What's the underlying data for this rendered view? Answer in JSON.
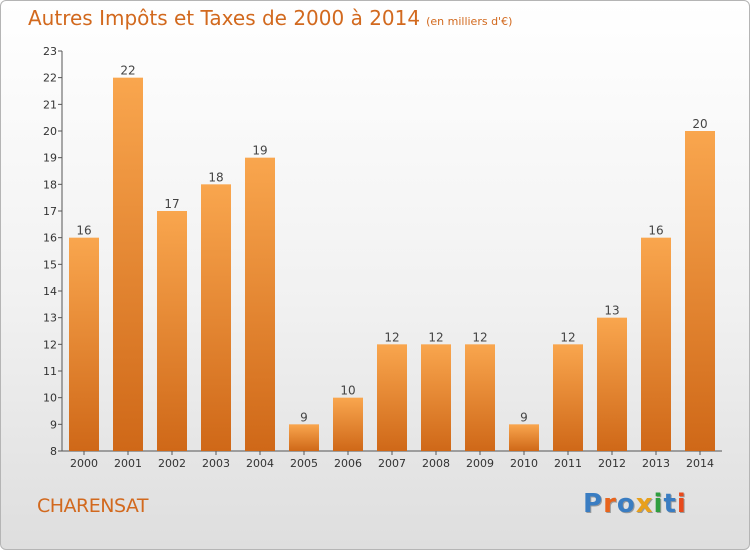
{
  "header": {
    "title": "Autres Impôts et Taxes de 2000 à 2014",
    "subtitle": "(en milliers d'€)"
  },
  "footer": {
    "city": "CHARENSAT"
  },
  "logo": {
    "text": "Proxiti",
    "letter_colors": [
      "#3a7dc2",
      "#e8641c",
      "#3a7dc2",
      "#e8a01c",
      "#2f9e3f",
      "#3a7dc2",
      "#e84a1c"
    ]
  },
  "colors": {
    "bar_light": "#f9a64e",
    "bar_dark": "#cf6818",
    "title": "#d2691e",
    "axis_text": "#333333"
  },
  "chart_data": {
    "type": "bar",
    "categories": [
      "2000",
      "2001",
      "2002",
      "2003",
      "2004",
      "2005",
      "2006",
      "2007",
      "2008",
      "2009",
      "2010",
      "2011",
      "2012",
      "2013",
      "2014"
    ],
    "values": [
      16,
      22,
      17,
      18,
      19,
      9,
      10,
      12,
      12,
      12,
      9,
      12,
      13,
      16,
      20
    ],
    "data_labels": [
      "16",
      "22",
      "17",
      "18",
      "19",
      "9",
      "10",
      "12",
      "12",
      "12",
      "9",
      "12",
      "13",
      "16",
      "20"
    ],
    "y_ticks": [
      "8",
      "9",
      "10",
      "11",
      "12",
      "13",
      "14",
      "15",
      "16",
      "17",
      "18",
      "19",
      "20",
      "21",
      "22",
      "23"
    ],
    "ylim": [
      8,
      23
    ],
    "grid": false
  }
}
